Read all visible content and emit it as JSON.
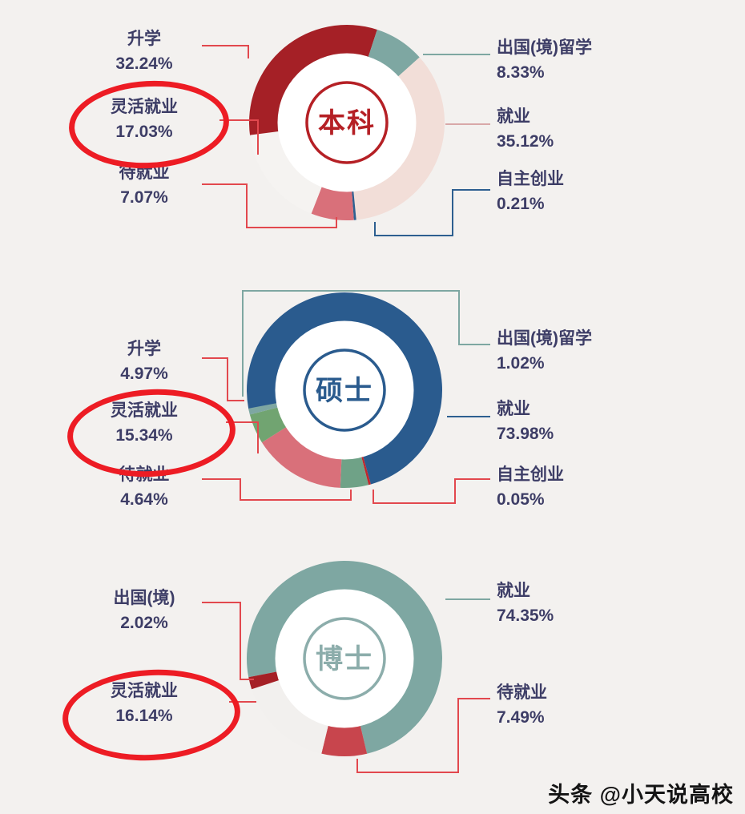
{
  "watermark": "头条 @小天说高校",
  "accent_red": "#ed1c24",
  "label_color": "#3d3d66",
  "chart_data": [
    {
      "type": "pie",
      "variant": "donut",
      "center_label": "本科",
      "theme_color": "#b52025",
      "start_angle": 262,
      "legend_position": "both-sides",
      "segments": [
        {
          "label": "升学",
          "value": 32.24,
          "pct": "32.24%",
          "color": "#a52026",
          "side": "left",
          "circled": false
        },
        {
          "label": "出国(境)留学",
          "value": 8.33,
          "pct": "8.33%",
          "color": "#7ea7a2",
          "side": "right",
          "circled": false
        },
        {
          "label": "就业",
          "value": 35.12,
          "pct": "35.12%",
          "color": "#f2ded8",
          "side": "right",
          "circled": false
        },
        {
          "label": "自主创业",
          "value": 0.21,
          "pct": "0.21%",
          "color": "#2d5f90",
          "side": "right",
          "circled": false
        },
        {
          "label": "待就业",
          "value": 7.07,
          "pct": "7.07%",
          "color": "#d9707a",
          "side": "left",
          "circled": false
        },
        {
          "label": "灵活就业",
          "value": 17.03,
          "pct": "17.03%",
          "color": "#f5f3f1",
          "side": "left",
          "circled": true
        }
      ]
    },
    {
      "type": "pie",
      "variant": "donut",
      "center_label": "硕士",
      "theme_color": "#2a5b8e",
      "start_angle": 258,
      "legend_position": "both-sides",
      "segments": [
        {
          "label": "就业",
          "value": 73.98,
          "pct": "73.98%",
          "color": "#2a5b8e",
          "side": "right",
          "circled": false
        },
        {
          "label": "自主创业",
          "value": 0.05,
          "pct": "0.05%",
          "color": "#c1272d",
          "side": "right",
          "circled": false
        },
        {
          "label": "待就业",
          "value": 4.64,
          "pct": "4.64%",
          "color": "#6fa287",
          "side": "left",
          "circled": false
        },
        {
          "label": "灵活就业",
          "value": 15.34,
          "pct": "15.34%",
          "color": "#d9707a",
          "side": "left",
          "circled": true
        },
        {
          "label": "升学",
          "value": 4.97,
          "pct": "4.97%",
          "color": "#71a471",
          "side": "left",
          "circled": false
        },
        {
          "label": "出国(境)留学",
          "value": 1.02,
          "pct": "1.02%",
          "color": "#7ea7a2",
          "side": "right",
          "circled": false
        }
      ]
    },
    {
      "type": "pie",
      "variant": "donut",
      "center_label": "博士",
      "theme_color": "#8cadab",
      "start_angle": 259,
      "legend_position": "both-sides",
      "segments": [
        {
          "label": "就业",
          "value": 74.35,
          "pct": "74.35%",
          "color": "#7ea7a2",
          "side": "right",
          "circled": false
        },
        {
          "label": "待就业",
          "value": 7.49,
          "pct": "7.49%",
          "color": "#c8454d",
          "side": "right",
          "circled": false
        },
        {
          "label": "灵活就业",
          "value": 16.14,
          "pct": "16.14%",
          "color": "#f2f0ee",
          "side": "left",
          "circled": true
        },
        {
          "label": "出国(境)",
          "value": 2.02,
          "pct": "2.02%",
          "color": "#a52026",
          "side": "left",
          "circled": false
        }
      ]
    }
  ]
}
